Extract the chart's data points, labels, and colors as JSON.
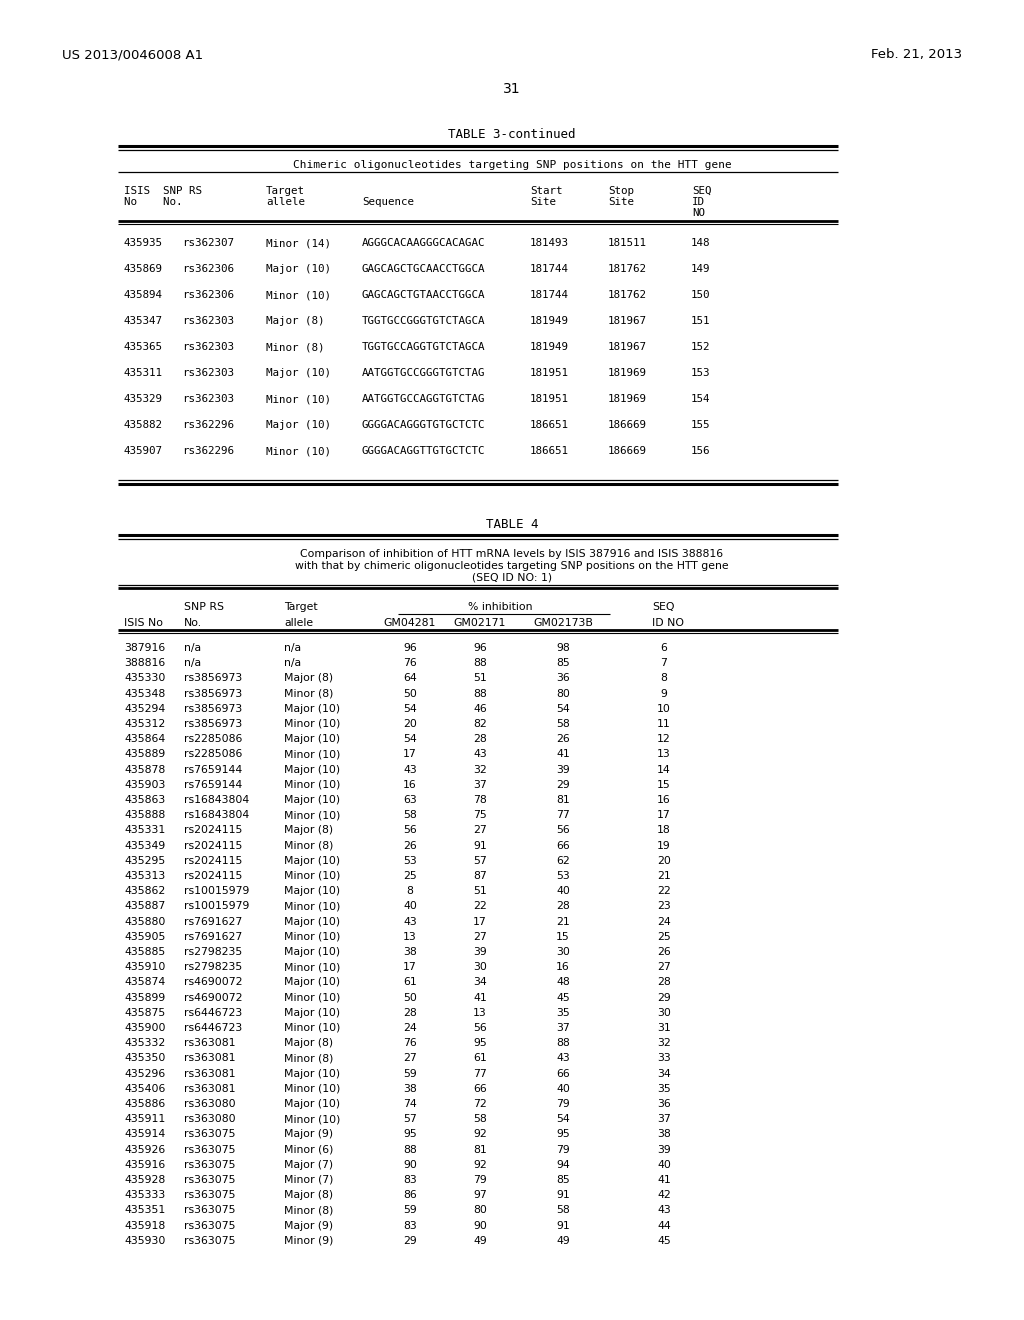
{
  "header_left": "US 2013/0046008 A1",
  "header_right": "Feb. 21, 2013",
  "page_number": "31",
  "table3_title": "TABLE 3-continued",
  "table3_subtitle": "Chimeric oligonucleotides targeting SNP positions on the HTT gene",
  "table3_data": [
    [
      "435935",
      "rs362307",
      "Minor (14)",
      "AGGGCACAAGGGCACAGAC",
      "181493",
      "181511",
      "148"
    ],
    [
      "435869",
      "rs362306",
      "Major (10)",
      "GAGCAGCTGCAACCTGGCA",
      "181744",
      "181762",
      "149"
    ],
    [
      "435894",
      "rs362306",
      "Minor (10)",
      "GAGCAGCTGTAACCTGGCA",
      "181744",
      "181762",
      "150"
    ],
    [
      "435347",
      "rs362303",
      "Major (8)",
      "TGGTGCCGGGTGTCTAGCA",
      "181949",
      "181967",
      "151"
    ],
    [
      "435365",
      "rs362303",
      "Minor (8)",
      "TGGTGCCAGGTGTCTAGCA",
      "181949",
      "181967",
      "152"
    ],
    [
      "435311",
      "rs362303",
      "Major (10)",
      "AATGGTGCCGGGTGTCTAG",
      "181951",
      "181969",
      "153"
    ],
    [
      "435329",
      "rs362303",
      "Minor (10)",
      "AATGGTGCCAGGTGTCTAG",
      "181951",
      "181969",
      "154"
    ],
    [
      "435882",
      "rs362296",
      "Major (10)",
      "GGGGACAGGGTGTGCTCTC",
      "186651",
      "186669",
      "155"
    ],
    [
      "435907",
      "rs362296",
      "Minor (10)",
      "GGGGACAGGTTGTGCTCTC",
      "186651",
      "186669",
      "156"
    ]
  ],
  "table4_title": "TABLE 4",
  "table4_subtitle1": "Comparison of inhibition of HTT mRNA levels by ISIS 387916 and ISIS 388816",
  "table4_subtitle2": "with that by chimeric oligonucleotides targeting SNP positions on the HTT gene",
  "table4_subtitle3": "(SEQ ID NO: 1)",
  "table4_data": [
    [
      "387916",
      "n/a",
      "n/a",
      "96",
      "96",
      "98",
      "6"
    ],
    [
      "388816",
      "n/a",
      "n/a",
      "76",
      "88",
      "85",
      "7"
    ],
    [
      "435330",
      "rs3856973",
      "Major (8)",
      "64",
      "51",
      "36",
      "8"
    ],
    [
      "435348",
      "rs3856973",
      "Minor (8)",
      "50",
      "88",
      "80",
      "9"
    ],
    [
      "435294",
      "rs3856973",
      "Major (10)",
      "54",
      "46",
      "54",
      "10"
    ],
    [
      "435312",
      "rs3856973",
      "Minor (10)",
      "20",
      "82",
      "58",
      "11"
    ],
    [
      "435864",
      "rs2285086",
      "Major (10)",
      "54",
      "28",
      "26",
      "12"
    ],
    [
      "435889",
      "rs2285086",
      "Minor (10)",
      "17",
      "43",
      "41",
      "13"
    ],
    [
      "435878",
      "rs7659144",
      "Major (10)",
      "43",
      "32",
      "39",
      "14"
    ],
    [
      "435903",
      "rs7659144",
      "Minor (10)",
      "16",
      "37",
      "29",
      "15"
    ],
    [
      "435863",
      "rs16843804",
      "Major (10)",
      "63",
      "78",
      "81",
      "16"
    ],
    [
      "435888",
      "rs16843804",
      "Minor (10)",
      "58",
      "75",
      "77",
      "17"
    ],
    [
      "435331",
      "rs2024115",
      "Major (8)",
      "56",
      "27",
      "56",
      "18"
    ],
    [
      "435349",
      "rs2024115",
      "Minor (8)",
      "26",
      "91",
      "66",
      "19"
    ],
    [
      "435295",
      "rs2024115",
      "Major (10)",
      "53",
      "57",
      "62",
      "20"
    ],
    [
      "435313",
      "rs2024115",
      "Minor (10)",
      "25",
      "87",
      "53",
      "21"
    ],
    [
      "435862",
      "rs10015979",
      "Major (10)",
      "8",
      "51",
      "40",
      "22"
    ],
    [
      "435887",
      "rs10015979",
      "Minor (10)",
      "40",
      "22",
      "28",
      "23"
    ],
    [
      "435880",
      "rs7691627",
      "Major (10)",
      "43",
      "17",
      "21",
      "24"
    ],
    [
      "435905",
      "rs7691627",
      "Minor (10)",
      "13",
      "27",
      "15",
      "25"
    ],
    [
      "435885",
      "rs2798235",
      "Major (10)",
      "38",
      "39",
      "30",
      "26"
    ],
    [
      "435910",
      "rs2798235",
      "Minor (10)",
      "17",
      "30",
      "16",
      "27"
    ],
    [
      "435874",
      "rs4690072",
      "Major (10)",
      "61",
      "34",
      "48",
      "28"
    ],
    [
      "435899",
      "rs4690072",
      "Minor (10)",
      "50",
      "41",
      "45",
      "29"
    ],
    [
      "435875",
      "rs6446723",
      "Major (10)",
      "28",
      "13",
      "35",
      "30"
    ],
    [
      "435900",
      "rs6446723",
      "Minor (10)",
      "24",
      "56",
      "37",
      "31"
    ],
    [
      "435332",
      "rs363081",
      "Major (8)",
      "76",
      "95",
      "88",
      "32"
    ],
    [
      "435350",
      "rs363081",
      "Minor (8)",
      "27",
      "61",
      "43",
      "33"
    ],
    [
      "435296",
      "rs363081",
      "Major (10)",
      "59",
      "77",
      "66",
      "34"
    ],
    [
      "435406",
      "rs363081",
      "Minor (10)",
      "38",
      "66",
      "40",
      "35"
    ],
    [
      "435886",
      "rs363080",
      "Major (10)",
      "74",
      "72",
      "79",
      "36"
    ],
    [
      "435911",
      "rs363080",
      "Minor (10)",
      "57",
      "58",
      "54",
      "37"
    ],
    [
      "435914",
      "rs363075",
      "Major (9)",
      "95",
      "92",
      "95",
      "38"
    ],
    [
      "435926",
      "rs363075",
      "Minor (6)",
      "88",
      "81",
      "79",
      "39"
    ],
    [
      "435916",
      "rs363075",
      "Major (7)",
      "90",
      "92",
      "94",
      "40"
    ],
    [
      "435928",
      "rs363075",
      "Minor (7)",
      "83",
      "79",
      "85",
      "41"
    ],
    [
      "435333",
      "rs363075",
      "Major (8)",
      "86",
      "97",
      "91",
      "42"
    ],
    [
      "435351",
      "rs363075",
      "Minor (8)",
      "59",
      "80",
      "58",
      "43"
    ],
    [
      "435918",
      "rs363075",
      "Major (9)",
      "83",
      "90",
      "91",
      "44"
    ],
    [
      "435930",
      "rs363075",
      "Minor (9)",
      "29",
      "49",
      "49",
      "45"
    ]
  ],
  "bg_color": "#ffffff",
  "text_color": "#000000"
}
